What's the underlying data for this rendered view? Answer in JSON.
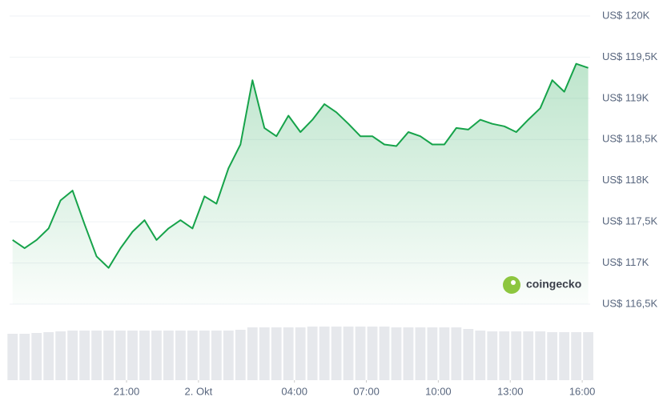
{
  "chart_data": {
    "type": "line",
    "watermark": "coingecko",
    "x": [
      16.25,
      16.75,
      17.25,
      17.75,
      18.25,
      18.75,
      19.25,
      19.75,
      20.25,
      20.75,
      21.25,
      21.75,
      22.25,
      22.75,
      23.25,
      23.75,
      24.25,
      24.75,
      25.25,
      25.75,
      26.25,
      26.75,
      27.25,
      27.75,
      28.25,
      28.75,
      29.25,
      29.75,
      30.25,
      30.75,
      31.25,
      31.75,
      32.25,
      32.75,
      33.25,
      33.75,
      34.25,
      34.75,
      35.25,
      35.75,
      36.25,
      36.75,
      37.25,
      37.75,
      38.25,
      38.75,
      39.25,
      39.75,
      40.25
    ],
    "series": [
      {
        "color": "#16a34a",
        "values": [
          117280,
          117180,
          117280,
          117420,
          117760,
          117880,
          117470,
          117080,
          116940,
          117180,
          117380,
          117520,
          117280,
          117420,
          117520,
          117420,
          117810,
          117720,
          118150,
          118440,
          119220,
          118640,
          118540,
          118790,
          118590,
          118740,
          118930,
          118830,
          118690,
          118540,
          118540,
          118440,
          118420,
          118590,
          118540,
          118440,
          118440,
          118640,
          118620,
          118740,
          118690,
          118660,
          118590,
          118740,
          118880,
          119220,
          119080,
          119420,
          119370
        ]
      }
    ],
    "volume": [
      58,
      58,
      59,
      60,
      61,
      62,
      62,
      62,
      62,
      62,
      62,
      62,
      62,
      62,
      62,
      62,
      62,
      62,
      62,
      63,
      66,
      66,
      66,
      66,
      66,
      67,
      67,
      67,
      67,
      67,
      67,
      67,
      66,
      66,
      66,
      66,
      66,
      66,
      64,
      62,
      61,
      61,
      61,
      61,
      61,
      60,
      60,
      60,
      60
    ],
    "xlim": [
      16.125,
      40.33
    ],
    "ylim": [
      116500,
      120000
    ],
    "xticks": [
      {
        "value": 21,
        "label": "21:00"
      },
      {
        "value": 24,
        "label": "2. Okt"
      },
      {
        "value": 28,
        "label": "04:00"
      },
      {
        "value": 31,
        "label": "07:00"
      },
      {
        "value": 34,
        "label": "10:00"
      },
      {
        "value": 37,
        "label": "13:00"
      },
      {
        "value": 40,
        "label": "16:00"
      }
    ],
    "yticks": [
      {
        "value": 120000,
        "label": "US$ 120K"
      },
      {
        "value": 119500,
        "label": "US$ 119,5K"
      },
      {
        "value": 119000,
        "label": "US$ 119K"
      },
      {
        "value": 118500,
        "label": "US$ 118,5K"
      },
      {
        "value": 118000,
        "label": "US$ 118K"
      },
      {
        "value": 117500,
        "label": "US$ 117,5K"
      },
      {
        "value": 117000,
        "label": "US$ 117K"
      },
      {
        "value": 116500,
        "label": "US$ 116,5K"
      }
    ],
    "grid": true
  }
}
